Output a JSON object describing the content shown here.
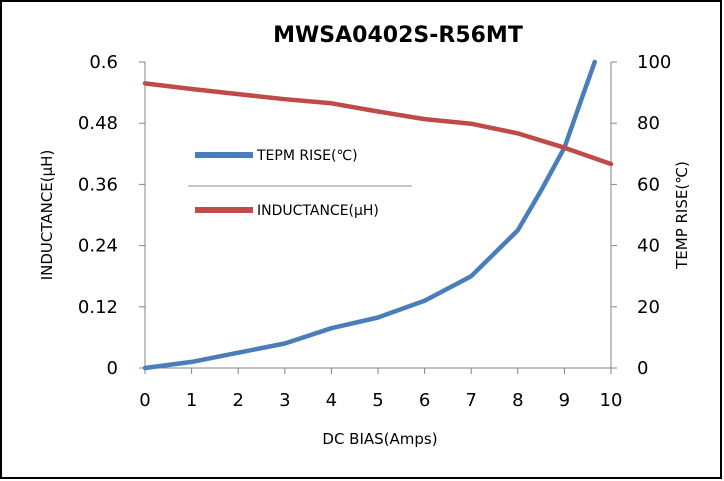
{
  "chart_data": {
    "type": "line",
    "title": "MWSA0402S-R56MT",
    "xlabel": "DC BIAS(Amps)",
    "ylabel_left": "INDUCTANCE(μH)",
    "ylabel_right": "TEMP RISE(℃)",
    "x_ticks": [
      "0",
      "1",
      "2",
      "3",
      "4",
      "5",
      "6",
      "7",
      "8",
      "9",
      "10"
    ],
    "left_ticks": [
      "0",
      "0.12",
      "0.24",
      "0.36",
      "0.48",
      "0.6"
    ],
    "right_ticks": [
      "0",
      "20",
      "40",
      "60",
      "80",
      "100"
    ],
    "xlim": [
      0,
      10
    ],
    "ylim_left": [
      0,
      0.6
    ],
    "ylim_right": [
      0,
      100
    ],
    "grid": false,
    "legend_placement": "center-left",
    "series": [
      {
        "name": "TEPM RISE(℃)",
        "axis": "right",
        "color": "#4a7ebb",
        "x": [
          0,
          1,
          2,
          3,
          4,
          5,
          6,
          7,
          8,
          8.5,
          9,
          9.3,
          9.65
        ],
        "y": [
          0,
          2,
          5,
          8,
          13,
          16.5,
          22,
          30,
          45,
          58,
          72,
          85,
          100
        ]
      },
      {
        "name": "INDUCTANCE(μH)",
        "axis": "left",
        "color": "#be4b48",
        "x": [
          0,
          1,
          2,
          3,
          4,
          5,
          6,
          7,
          8,
          9,
          10
        ],
        "y": [
          0.558,
          0.547,
          0.537,
          0.527,
          0.519,
          0.503,
          0.488,
          0.479,
          0.46,
          0.432,
          0.4
        ]
      }
    ]
  }
}
